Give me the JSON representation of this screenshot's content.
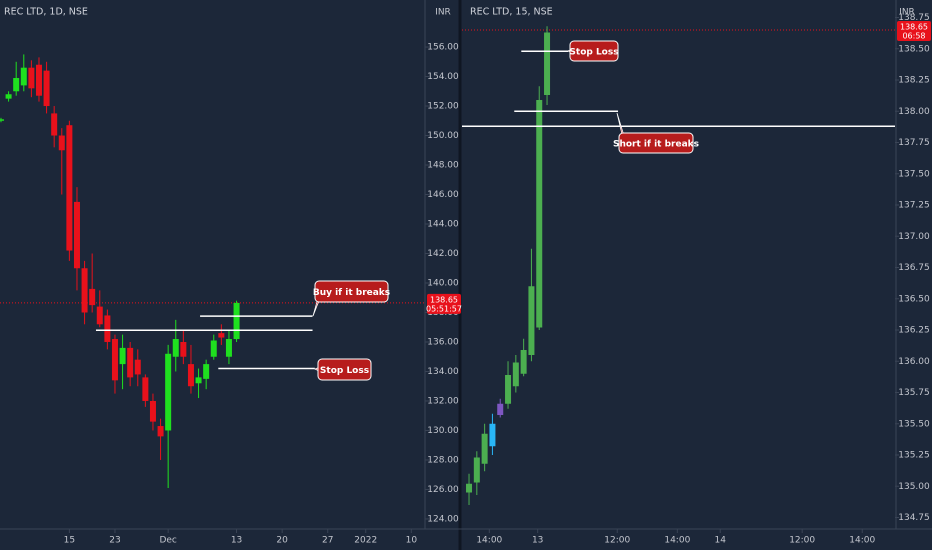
{
  "chart_data": [
    {
      "type": "candlestick",
      "title": "REC LTD, 1D, NSE",
      "currency": "INR",
      "up_color": "#1fe01f",
      "down_color": "#e8111b",
      "x": [
        0,
        1,
        2,
        3,
        4,
        5,
        6,
        7,
        8,
        9,
        10,
        11,
        12,
        13,
        14,
        15,
        16,
        17,
        18,
        19,
        20,
        21,
        22,
        23,
        24,
        25,
        26,
        27,
        28,
        29,
        30,
        31
      ],
      "open": [
        151.0,
        152.5,
        153.0,
        153.4,
        154.6,
        154.8,
        154.4,
        151.5,
        150.0,
        150.7,
        145.5,
        141.0,
        139.6,
        138.4,
        137.8,
        136.2,
        134.5,
        135.6,
        134.8,
        133.6,
        132.0,
        130.3,
        130.0,
        135.0,
        136.0,
        134.5,
        133.2,
        133.5,
        135.0,
        136.6,
        135.0,
        136.2
      ],
      "high": [
        151.2,
        153.0,
        155.0,
        155.5,
        155.1,
        155.3,
        155.0,
        152.0,
        150.5,
        151.0,
        146.5,
        141.5,
        142.0,
        139.5,
        138.2,
        136.5,
        136.5,
        136.0,
        135.5,
        133.8,
        132.5,
        130.8,
        135.8,
        137.5,
        136.8,
        135.8,
        134.2,
        134.8,
        136.5,
        137.2,
        136.8,
        138.8
      ],
      "low": [
        150.9,
        152.3,
        152.7,
        153.0,
        152.6,
        152.3,
        151.5,
        149.2,
        146.0,
        141.5,
        139.5,
        137.2,
        138.0,
        137.0,
        135.5,
        132.5,
        132.8,
        133.0,
        133.0,
        131.6,
        130.0,
        128.0,
        126.1,
        134.0,
        134.5,
        132.5,
        132.2,
        132.8,
        134.8,
        135.8,
        134.5,
        136.0
      ],
      "close": [
        151.1,
        152.8,
        153.9,
        154.6,
        153.2,
        152.7,
        152.0,
        150.0,
        149.0,
        142.2,
        141.0,
        138.0,
        138.5,
        137.2,
        136.0,
        133.4,
        135.6,
        133.6,
        133.8,
        132.0,
        130.6,
        129.6,
        135.2,
        136.2,
        135.0,
        133.0,
        133.6,
        134.5,
        136.1,
        136.3,
        136.2,
        138.65
      ],
      "xlim": [
        -0.13,
        55.8
      ],
      "ylim": [
        123.59,
        159.19
      ],
      "xticks": [
        {
          "value": 9,
          "label": "15"
        },
        {
          "value": 15,
          "label": "23"
        },
        {
          "value": 22,
          "label": "Dec"
        },
        {
          "value": 31,
          "label": "13"
        },
        {
          "value": 37,
          "label": "20"
        },
        {
          "value": 43,
          "label": "27"
        },
        {
          "value": 48,
          "label": "2022"
        },
        {
          "value": 54,
          "label": "10"
        }
      ],
      "yticks": [
        {
          "value": 156,
          "label": "156.00"
        },
        {
          "value": 154,
          "label": "154.00"
        },
        {
          "value": 152,
          "label": "152.00"
        },
        {
          "value": 150,
          "label": "150.00"
        },
        {
          "value": 148,
          "label": "148.00"
        },
        {
          "value": 146,
          "label": "146.00"
        },
        {
          "value": 144,
          "label": "144.00"
        },
        {
          "value": 142,
          "label": "142.00"
        },
        {
          "value": 140,
          "label": "140.00"
        },
        {
          "value": 138,
          "label": "138.00"
        },
        {
          "value": 136,
          "label": "136.00"
        },
        {
          "value": 134,
          "label": "134.00"
        },
        {
          "value": 132,
          "label": "132.00"
        },
        {
          "value": 130,
          "label": "130.00"
        },
        {
          "value": 128,
          "label": "128.00"
        },
        {
          "value": 126,
          "label": "126.00"
        },
        {
          "value": 124,
          "label": "124.00"
        }
      ],
      "last_price": 138.65,
      "countdown": "05:51:57",
      "levels": [
        {
          "value": 136.8,
          "from": 12.5,
          "to": 41
        },
        {
          "value": 137.75,
          "from": 26.2,
          "to": 41
        },
        {
          "value": 134.2,
          "from": 28.6,
          "to": 41.3
        }
      ],
      "annotations": [
        "Buy if it breaks",
        "Stop Loss"
      ]
    },
    {
      "type": "candlestick",
      "title": "REC LTD, 15, NSE",
      "currency": "INR",
      "up_color": "#4caf50",
      "down_color": "#e8111b",
      "colors": [
        "#4caf50",
        "#4caf50",
        "#4caf50",
        "#29b6f6",
        "#7e57c2",
        "#4caf50",
        "#4caf50",
        "#4caf50",
        "#4caf50",
        "#4caf50",
        "#4caf50"
      ],
      "x": [
        0,
        1,
        2,
        3,
        4,
        5,
        6,
        7,
        8,
        9,
        10
      ],
      "open": [
        134.95,
        135.03,
        135.18,
        135.32,
        135.57,
        135.66,
        135.8,
        135.9,
        136.05,
        136.27,
        138.13
      ],
      "high": [
        135.1,
        135.28,
        135.5,
        135.58,
        135.7,
        136.0,
        136.05,
        136.18,
        136.9,
        138.2,
        138.68
      ],
      "low": [
        134.85,
        134.93,
        135.12,
        135.25,
        135.55,
        135.62,
        135.75,
        135.88,
        136.0,
        136.25,
        138.05
      ],
      "close": [
        135.02,
        135.23,
        135.42,
        135.5,
        135.66,
        135.89,
        135.99,
        136.09,
        136.6,
        138.09,
        138.63
      ],
      "xlim": [
        -0.9,
        54.6
      ],
      "ylim": [
        134.69,
        138.89
      ],
      "xticks": [
        {
          "value": 2.6,
          "label": "14:00"
        },
        {
          "value": 8.8,
          "label": "13"
        },
        {
          "value": 19,
          "label": "12:00"
        },
        {
          "value": 26.7,
          "label": "14:00"
        },
        {
          "value": 32.2,
          "label": "14"
        },
        {
          "value": 42.7,
          "label": "12:00"
        },
        {
          "value": 50.4,
          "label": "14:00"
        }
      ],
      "yticks": [
        {
          "value": 138.75,
          "label": "138.75"
        },
        {
          "value": 138.5,
          "label": "138.50"
        },
        {
          "value": 138.25,
          "label": "138.25"
        },
        {
          "value": 138,
          "label": "138.00"
        },
        {
          "value": 137.75,
          "label": "137.75"
        },
        {
          "value": 137.5,
          "label": "137.50"
        },
        {
          "value": 137.25,
          "label": "137.25"
        },
        {
          "value": 137,
          "label": "137.00"
        },
        {
          "value": 136.75,
          "label": "136.75"
        },
        {
          "value": 136.5,
          "label": "136.50"
        },
        {
          "value": 136.25,
          "label": "136.25"
        },
        {
          "value": 136,
          "label": "136.00"
        },
        {
          "value": 135.75,
          "label": "135.75"
        },
        {
          "value": 135.5,
          "label": "135.50"
        },
        {
          "value": 135.25,
          "label": "135.25"
        },
        {
          "value": 135,
          "label": "135.00"
        },
        {
          "value": 134.75,
          "label": "134.75"
        }
      ],
      "last_price": 138.65,
      "countdown": "06:58",
      "levels": [
        {
          "value": 138.48,
          "from": 6.7,
          "to": 12.7
        },
        {
          "value": 138.0,
          "from": 5.8,
          "to": 19.1
        },
        {
          "value": 137.88,
          "from": -0.9,
          "to": 54.6
        }
      ],
      "annotations": [
        "Stop Loss",
        "Short if it breaks"
      ]
    }
  ]
}
